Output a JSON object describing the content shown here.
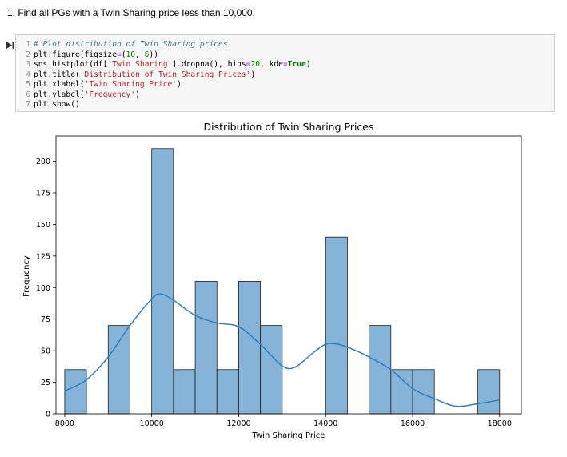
{
  "prompt_text": "1. Find all PGs with a Twin Sharing price less than 10,000.",
  "code_lines": [
    {
      "num": "1",
      "tokens": [
        {
          "t": "# Plot distribution of Twin Sharing prices",
          "c": "comment"
        }
      ]
    },
    {
      "num": "2",
      "tokens": [
        {
          "t": "plt.figure(figsize",
          "c": "plain"
        },
        {
          "t": "=",
          "c": "op"
        },
        {
          "t": "(",
          "c": "plain"
        },
        {
          "t": "10",
          "c": "num"
        },
        {
          "t": ", ",
          "c": "plain"
        },
        {
          "t": "6",
          "c": "num"
        },
        {
          "t": "))",
          "c": "plain"
        }
      ]
    },
    {
      "num": "3",
      "tokens": [
        {
          "t": "sns.histplot(df[",
          "c": "plain"
        },
        {
          "t": "'Twin Sharing'",
          "c": "str"
        },
        {
          "t": "].dropna(), bins",
          "c": "plain"
        },
        {
          "t": "=",
          "c": "op"
        },
        {
          "t": "20",
          "c": "num"
        },
        {
          "t": ", kde",
          "c": "plain"
        },
        {
          "t": "=",
          "c": "op"
        },
        {
          "t": "True",
          "c": "kw"
        },
        {
          "t": ")",
          "c": "plain"
        }
      ]
    },
    {
      "num": "4",
      "tokens": [
        {
          "t": "plt.title(",
          "c": "plain"
        },
        {
          "t": "'Distribution of Twin Sharing Prices'",
          "c": "str"
        },
        {
          "t": ")",
          "c": "plain"
        }
      ]
    },
    {
      "num": "5",
      "tokens": [
        {
          "t": "plt.xlabel(",
          "c": "plain"
        },
        {
          "t": "'Twin Sharing Price'",
          "c": "str"
        },
        {
          "t": ")",
          "c": "plain"
        }
      ]
    },
    {
      "num": "6",
      "tokens": [
        {
          "t": "plt.ylabel(",
          "c": "plain"
        },
        {
          "t": "'Frequency'",
          "c": "str"
        },
        {
          "t": ")",
          "c": "plain"
        }
      ]
    },
    {
      "num": "7",
      "tokens": [
        {
          "t": "plt.show()",
          "c": "plain"
        }
      ]
    }
  ],
  "colors": {
    "bar_fill": "#86b4d9",
    "bar_edge": "#1f1f1f",
    "kde": "#2f7fbf"
  },
  "chart_data": {
    "type": "bar",
    "title": "Distribution of Twin Sharing Prices",
    "xlabel": "Twin Sharing Price",
    "ylabel": "Frequency",
    "xlim": [
      7800,
      18500
    ],
    "ylim": [
      0,
      220
    ],
    "xticks": [
      8000,
      10000,
      12000,
      14000,
      16000,
      18000
    ],
    "yticks": [
      0,
      25,
      50,
      75,
      100,
      125,
      150,
      175,
      200
    ],
    "bins": [
      {
        "x0": 8000,
        "x1": 8500,
        "count": 35
      },
      {
        "x0": 8500,
        "x1": 9000,
        "count": 0
      },
      {
        "x0": 9000,
        "x1": 9500,
        "count": 70
      },
      {
        "x0": 9500,
        "x1": 10000,
        "count": 0
      },
      {
        "x0": 10000,
        "x1": 10500,
        "count": 210
      },
      {
        "x0": 10500,
        "x1": 11000,
        "count": 35
      },
      {
        "x0": 11000,
        "x1": 11500,
        "count": 105
      },
      {
        "x0": 11500,
        "x1": 12000,
        "count": 35
      },
      {
        "x0": 12000,
        "x1": 12500,
        "count": 105
      },
      {
        "x0": 12500,
        "x1": 13000,
        "count": 70
      },
      {
        "x0": 13000,
        "x1": 13500,
        "count": 0
      },
      {
        "x0": 13500,
        "x1": 14000,
        "count": 0
      },
      {
        "x0": 14000,
        "x1": 14500,
        "count": 140
      },
      {
        "x0": 14500,
        "x1": 15000,
        "count": 0
      },
      {
        "x0": 15000,
        "x1": 15500,
        "count": 70
      },
      {
        "x0": 15500,
        "x1": 16000,
        "count": 35
      },
      {
        "x0": 16000,
        "x1": 16500,
        "count": 35
      },
      {
        "x0": 16500,
        "x1": 17000,
        "count": 0
      },
      {
        "x0": 17000,
        "x1": 17500,
        "count": 0
      },
      {
        "x0": 17500,
        "x1": 18000,
        "count": 35
      }
    ],
    "kde": {
      "x": [
        8000,
        8500,
        9000,
        9500,
        10000,
        10200,
        10500,
        11000,
        11500,
        12000,
        12500,
        13000,
        13300,
        13700,
        14000,
        14300,
        14700,
        15000,
        15500,
        16000,
        16500,
        17000,
        17500,
        18000
      ],
      "y": [
        18,
        27,
        45,
        70,
        91,
        95,
        90,
        78,
        72,
        69,
        55,
        38,
        37,
        48,
        55,
        55,
        50,
        45,
        35,
        20,
        12,
        6,
        8,
        11
      ]
    }
  }
}
